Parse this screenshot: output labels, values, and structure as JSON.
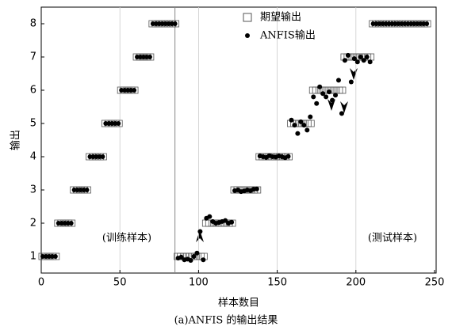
{
  "chart_data": {
    "type": "scatter",
    "caption": "(a)ANFIS 的输出结果",
    "xlabel": "样本数目",
    "ylabel": "输出",
    "annotations": [
      "(训练样本)",
      "(测试样本)"
    ],
    "xlim": [
      0,
      251
    ],
    "ylim": [
      0.5,
      8.5
    ],
    "xticks": [
      0,
      50,
      100,
      150,
      200,
      250
    ],
    "yticks": [
      1,
      2,
      3,
      4,
      5,
      6,
      7,
      8
    ],
    "grid": true,
    "divider": 85,
    "legend": "top-right",
    "x": [
      1,
      3,
      5,
      7,
      9,
      11,
      13,
      15,
      17,
      19,
      21,
      23,
      25,
      27,
      29,
      31,
      33,
      35,
      37,
      39,
      41,
      43,
      45,
      47,
      49,
      51,
      53,
      55,
      57,
      59,
      61,
      63,
      65,
      67,
      69,
      71,
      73,
      75,
      77,
      79,
      81,
      83,
      85,
      87,
      89,
      91,
      93,
      95,
      97,
      99,
      101,
      103,
      105,
      107,
      109,
      111,
      113,
      115,
      117,
      119,
      121,
      123,
      125,
      127,
      129,
      131,
      133,
      135,
      137,
      139,
      141,
      143,
      145,
      147,
      149,
      151,
      153,
      155,
      157,
      159,
      161,
      163,
      165,
      167,
      169,
      171,
      173,
      175,
      177,
      179,
      181,
      183,
      185,
      187,
      189,
      191,
      193,
      195,
      197,
      199,
      201,
      203,
      205,
      207,
      209,
      211,
      213,
      215,
      217,
      219,
      221,
      223,
      225,
      227,
      229,
      231,
      233,
      235,
      237,
      239,
      241,
      243,
      245
    ],
    "series": [
      {
        "name": "期望输出",
        "color": "#555555",
        "marker": "square",
        "values": [
          1,
          1,
          1,
          1,
          1,
          2,
          2,
          2,
          2,
          2,
          3,
          3,
          3,
          3,
          3,
          4,
          4,
          4,
          4,
          4,
          5,
          5,
          5,
          5,
          5,
          6,
          6,
          6,
          6,
          6,
          7,
          7,
          7,
          7,
          7,
          8,
          8,
          8,
          8,
          8,
          8,
          8,
          8,
          1,
          1,
          1,
          1,
          1,
          1,
          1,
          1,
          1,
          2,
          2,
          2,
          2,
          2,
          2,
          2,
          2,
          2,
          3,
          3,
          3,
          3,
          3,
          3,
          3,
          3,
          4,
          4,
          4,
          4,
          4,
          4,
          4,
          4,
          4,
          4,
          5,
          5,
          5,
          5,
          5,
          5,
          5,
          6,
          6,
          6,
          6,
          6,
          6,
          6,
          6,
          6,
          6,
          7,
          7,
          7,
          7,
          7,
          7,
          7,
          7,
          7,
          8,
          8,
          8,
          8,
          8,
          8,
          8,
          8,
          8,
          8,
          8,
          8,
          8,
          8,
          8,
          8,
          8,
          8
        ]
      },
      {
        "name": "ANFIS输出",
        "color": "#000000",
        "marker": "dot",
        "values": [
          1,
          1,
          1,
          1,
          1,
          2,
          2,
          2,
          2,
          2,
          3,
          3,
          3,
          3,
          3,
          4,
          4,
          4,
          4,
          4,
          5,
          5,
          5,
          5,
          5,
          6,
          6,
          6,
          6,
          6,
          7,
          7,
          7,
          7,
          7,
          8,
          8,
          8,
          8,
          8,
          8,
          8,
          8,
          0.95,
          0.98,
          0.9,
          0.92,
          0.88,
          1.0,
          1.1,
          1.75,
          0.9,
          2.15,
          2.2,
          2.05,
          2.0,
          2.02,
          2.05,
          2.08,
          2.0,
          2.03,
          2.98,
          3.0,
          2.95,
          2.97,
          3.0,
          2.98,
          3.02,
          3.03,
          4.02,
          4.0,
          3.98,
          4.03,
          4.0,
          3.99,
          4.02,
          4.0,
          3.97,
          4.01,
          5.1,
          4.95,
          4.7,
          5.05,
          4.95,
          4.8,
          5.2,
          5.8,
          5.6,
          6.1,
          5.9,
          5.8,
          5.95,
          5.7,
          5.85,
          6.3,
          5.3,
          6.9,
          7.05,
          6.25,
          6.95,
          6.85,
          7.0,
          6.9,
          7.0,
          6.85,
          8,
          8,
          8,
          8,
          8,
          8,
          8,
          8,
          8,
          8,
          8,
          8,
          8,
          8,
          8,
          8,
          8,
          8
        ]
      }
    ]
  }
}
